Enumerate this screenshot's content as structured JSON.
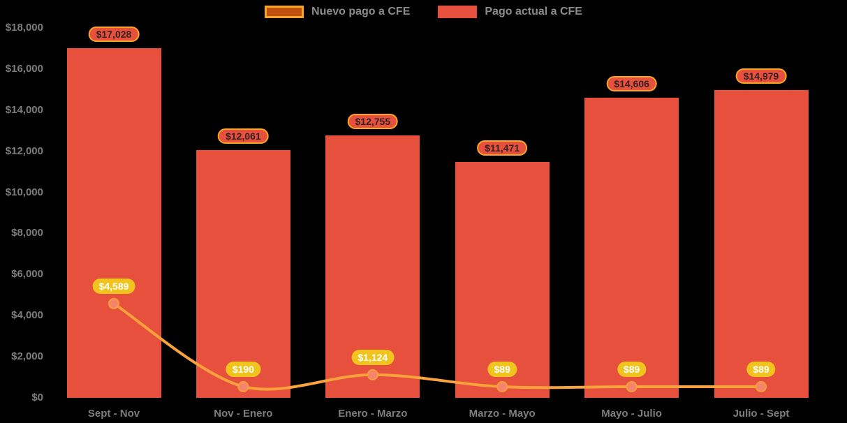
{
  "legend": {
    "items": [
      {
        "label": "Nuevo pago a CFE",
        "swatch_fill": "#c2500e",
        "swatch_border": "#f6a623"
      },
      {
        "label": "Pago actual a CFE",
        "swatch_fill": "#e8503e",
        "swatch_border": "#e8503e"
      }
    ]
  },
  "chart_data": {
    "type": "bar",
    "title": "",
    "categories": [
      "Sept - Nov",
      "Nov - Enero",
      "Enero - Marzo",
      "Marzo - Mayo",
      "Mayo - Julio",
      "Julio - Sept"
    ],
    "series": [
      {
        "name": "Pago actual a CFE",
        "type": "bar",
        "color": "#e8503e",
        "values": [
          17028,
          12061,
          12755,
          11471,
          14606,
          14979
        ],
        "labels": [
          "$17,028",
          "$12,061",
          "$12,755",
          "$11,471",
          "$14,606",
          "$14,979"
        ]
      },
      {
        "name": "Nuevo pago a CFE",
        "type": "line",
        "color": "#f9a23b",
        "marker_color": "#f7836e",
        "values": [
          4589,
          190,
          1124,
          89,
          89,
          89
        ],
        "labels": [
          "$4,589",
          "$190",
          "$1,124",
          "$89",
          "$89",
          "$89"
        ]
      }
    ],
    "ylim": [
      0,
      18000
    ],
    "ytick_step": 2000,
    "ytick_labels": [
      "$0",
      "$2,000",
      "$4,000",
      "$6,000",
      "$8,000",
      "$10,000",
      "$12,000",
      "$14,000",
      "$16,000",
      "$18,000"
    ],
    "grid": false,
    "legend_position": "top",
    "background": "#000000",
    "value_label_styles": {
      "bar": {
        "fill": "#e8503e",
        "border": "#f6a623",
        "text": "#332222"
      },
      "line": {
        "fill": "#f0c31d",
        "border": "#f0c31d",
        "text": "#ffffff"
      }
    }
  }
}
